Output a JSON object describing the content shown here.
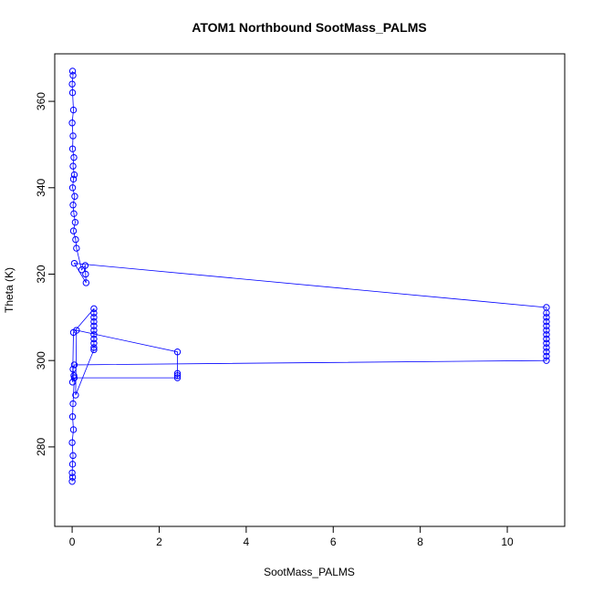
{
  "chart_data": {
    "type": "line-points",
    "title": "ATOM1 Northbound SootMass_PALMS",
    "x_label": "SootMass_PALMS",
    "y_label": "Theta (K)",
    "xlim": [
      -0.4,
      11.32
    ],
    "ylim": [
      261.6,
      371.0
    ],
    "xticks": [
      0,
      2,
      4,
      6,
      8,
      10
    ],
    "yticks": [
      280,
      300,
      320,
      340,
      360
    ],
    "color": "#0000ff",
    "x": [
      0.01,
      0.02,
      0.0,
      0.01,
      0.03,
      0.0,
      0.02,
      0.01,
      0.04,
      0.02,
      0.05,
      0.03,
      0.01,
      0.06,
      0.02,
      0.04,
      0.07,
      0.03,
      0.08,
      0.1,
      0.22,
      0.3,
      0.31,
      0.32,
      0.05,
      10.9,
      10.9,
      10.9,
      10.9,
      10.9,
      10.9,
      10.9,
      10.9,
      10.9,
      10.9,
      10.9,
      10.9,
      10.9,
      0.05,
      0.02,
      0.04,
      0.01,
      0.03,
      0.5,
      0.5,
      0.5,
      0.5,
      0.5,
      0.5,
      0.5,
      0.5,
      0.5,
      0.5,
      0.5,
      0.08,
      0.1,
      2.42,
      2.42,
      2.42,
      2.42,
      0.05,
      0.02,
      0.01,
      0.03,
      0.0,
      0.02,
      0.01,
      0.0,
      0.01,
      0.0
    ],
    "y": [
      367,
      366,
      364,
      362,
      358,
      355,
      352,
      349,
      347,
      345,
      343,
      342,
      340,
      338,
      336,
      334,
      332,
      330,
      328,
      326,
      321,
      322,
      320,
      318,
      322.5,
      312.3,
      311,
      310,
      309,
      308,
      307,
      306,
      305,
      304,
      303,
      302,
      301,
      300,
      299,
      298,
      296.5,
      295,
      306.5,
      312,
      311,
      310,
      309,
      308,
      307,
      306,
      305,
      304,
      303,
      302.5,
      292,
      307,
      302,
      297,
      296.5,
      296,
      296,
      290,
      287,
      284,
      281,
      278,
      276,
      274,
      273,
      272
    ]
  }
}
